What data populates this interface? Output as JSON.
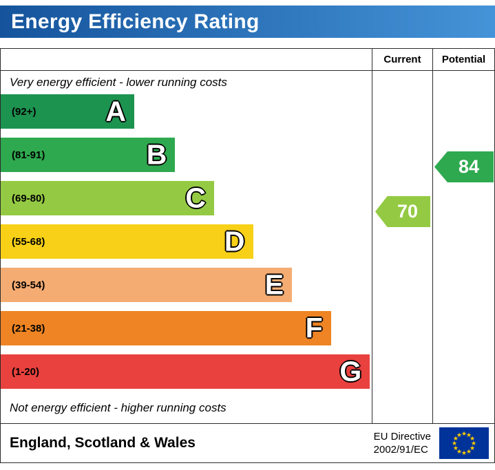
{
  "header": {
    "title": "Energy Efficiency Rating",
    "bar_color_left": "#15549c",
    "bar_color_right": "#4593d8"
  },
  "columns": {
    "current": "Current",
    "potential": "Potential"
  },
  "chart_data": {
    "type": "bar",
    "title": "Energy Efficiency Rating",
    "top_note": "Very energy efficient - lower running costs",
    "bottom_note": "Not energy efficient - higher running costs",
    "bands": [
      {
        "letter": "A",
        "range": "(92+)",
        "color": "#1d9350",
        "width_pct": 36
      },
      {
        "letter": "B",
        "range": "(81-91)",
        "color": "#2fa94f",
        "width_pct": 47
      },
      {
        "letter": "C",
        "range": "(69-80)",
        "color": "#94ca43",
        "width_pct": 57.5
      },
      {
        "letter": "D",
        "range": "(55-68)",
        "color": "#f7d017",
        "width_pct": 68
      },
      {
        "letter": "E",
        "range": "(39-54)",
        "color": "#f5ac72",
        "width_pct": 78.5
      },
      {
        "letter": "F",
        "range": "(21-38)",
        "color": "#ee8423",
        "width_pct": 89
      },
      {
        "letter": "G",
        "range": "(1-20)",
        "color": "#e9413e",
        "width_pct": 99.5
      }
    ],
    "current": {
      "value": "70",
      "band": "C",
      "color": "#94ca43"
    },
    "potential": {
      "value": "84",
      "band": "B",
      "color": "#2fa94f"
    }
  },
  "footer": {
    "region": "England, Scotland & Wales",
    "directive_line1": "EU Directive",
    "directive_line2": "2002/91/EC",
    "flag_icon": "eu-flag-icon",
    "flag_colors": {
      "field": "#003399",
      "stars": "#ffcc00"
    }
  }
}
